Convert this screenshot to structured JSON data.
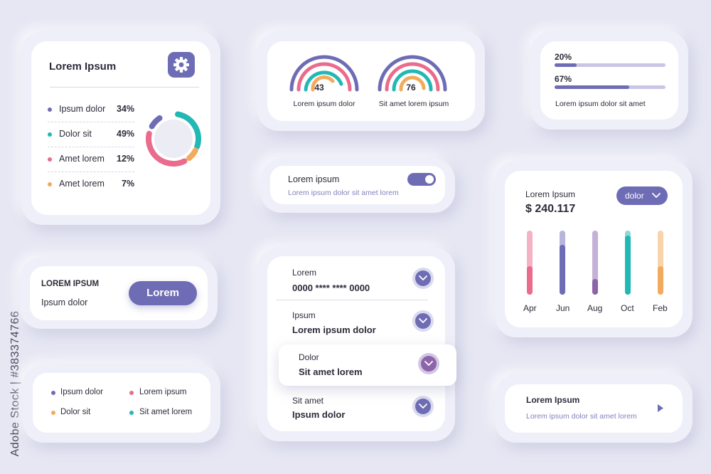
{
  "colors": {
    "purple": "#6e6cb4",
    "teal": "#22b8b5",
    "pink": "#ea6b8c",
    "orange": "#f2ab5c",
    "violet": "#8c64a8",
    "light_purple": "#c9c5e4"
  },
  "watermark": "Adobe Stock | #383374766",
  "card_donut": {
    "title": "Lorem Ipsum",
    "icon": "gear-icon",
    "items": [
      {
        "label": "Ipsum dolor",
        "value": "34%",
        "color": "#6e6cb4"
      },
      {
        "label": "Dolor sit",
        "value": "49%",
        "color": "#22b8b5"
      },
      {
        "label": "Amet lorem",
        "value": "12%",
        "color": "#ea6b8c"
      },
      {
        "label": "Amet lorem",
        "value": "7%",
        "color": "#f2ab5c"
      }
    ]
  },
  "card_gauges": {
    "gauges": [
      {
        "value": "43",
        "label": "Lorem ipsum dolor"
      },
      {
        "value": "76",
        "label": "Sit amet lorem ipsum"
      }
    ]
  },
  "card_progress": {
    "bars": [
      {
        "label": "20%",
        "fraction": 0.2
      },
      {
        "label": "67%",
        "fraction": 0.67
      }
    ],
    "caption": "Lorem ipsum dolor sit amet"
  },
  "card_toggle": {
    "title": "Lorem ipsum",
    "subtitle": "Lorem ipsum dolor sit amet lorem",
    "on": true
  },
  "card_chart": {
    "title": "Lorem Ipsum",
    "amount": "$ 240.117",
    "dropdown": "dolor"
  },
  "chart_data": {
    "type": "bar",
    "categories": [
      "Apr",
      "Jun",
      "Aug",
      "Oct",
      "Feb"
    ],
    "values": [
      0.44,
      0.78,
      0.24,
      0.92,
      0.44
    ],
    "ylim": [
      0,
      1
    ],
    "colors": [
      "#ea6b8c",
      "#6e6cb4",
      "#8c64a8",
      "#22b8b5",
      "#f2ab5c"
    ],
    "track_colors": [
      "#f5b2c4",
      "#b7b5dc",
      "#c5b0d6",
      "#8fd9d6",
      "#f9d4a8"
    ],
    "grid": false
  },
  "card_button": {
    "title": "LOREM IPSUM",
    "subtitle": "Ipsum dolor",
    "button": "Lorem"
  },
  "card_legend": {
    "items": [
      {
        "label": "Ipsum dolor",
        "color": "#6e6cb4"
      },
      {
        "label": "Lorem ipsum",
        "color": "#ea6b8c"
      },
      {
        "label": "Dolor sit",
        "color": "#f2ab5c"
      },
      {
        "label": "Sit amet lorem",
        "color": "#22b8b5"
      }
    ]
  },
  "card_accordion": {
    "items": [
      {
        "label": "Lorem",
        "value": "0000 **** **** 0000"
      },
      {
        "label": "Ipsum",
        "value": "Lorem ipsum dolor"
      },
      {
        "label": "Dolor",
        "value": "Sit amet lorem"
      },
      {
        "label": "Sit amet",
        "value": "Ipsum dolor"
      }
    ]
  },
  "card_nav": {
    "title": "Lorem Ipsum",
    "subtitle": "Lorem ipsum dolor sit amet lorem"
  }
}
